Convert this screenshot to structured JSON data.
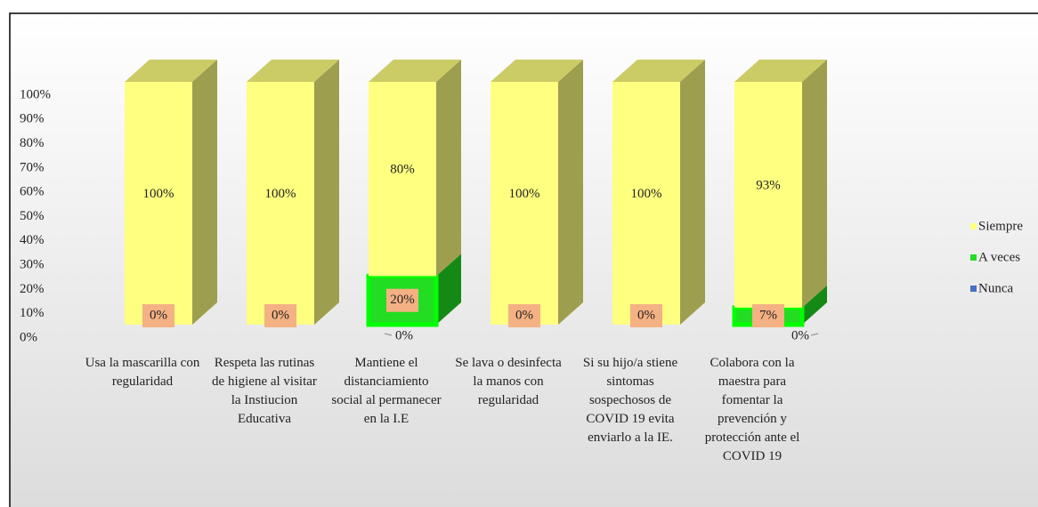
{
  "chart_data": {
    "type": "bar3d_stacked",
    "categories": [
      "Usa la mascarilla con regularidad",
      "Respeta las rutinas de higiene al visitar la Instiucion Educativa",
      "Mantiene el distanciamiento social al permanecer en la I.E",
      "Se lava o desinfecta la manos con regularidad",
      "Si su hijo/a stiene sintomas sospechosos de COVID 19 evita enviarlo a la IE.",
      "Colabora con la maestra para fomentar la prevención y protección ante el COVID 19"
    ],
    "series": [
      {
        "name": "Nunca",
        "color": "#4472c4",
        "values": [
          0,
          0,
          0,
          0,
          0,
          0
        ],
        "value_labels": [
          null,
          null,
          "0%",
          null,
          null,
          "0%"
        ]
      },
      {
        "name": "A veces",
        "color": "#22dd22",
        "values": [
          0,
          0,
          20,
          0,
          0,
          7
        ],
        "value_labels": [
          "0%",
          "0%",
          "20%",
          "0%",
          "0%",
          "7%"
        ]
      },
      {
        "name": "Siempre",
        "color": "#ffff80",
        "values": [
          100,
          100,
          80,
          100,
          100,
          93
        ],
        "value_labels": [
          "100%",
          "100%",
          "80%",
          "100%",
          "100%",
          "93%"
        ]
      }
    ],
    "ylim": [
      0,
      100
    ],
    "yticks": [
      {
        "value": 0,
        "label": "0%"
      },
      {
        "value": 10,
        "label": "10%"
      },
      {
        "value": 20,
        "label": "20%"
      },
      {
        "value": 30,
        "label": "30%"
      },
      {
        "value": 40,
        "label": "40%"
      },
      {
        "value": 50,
        "label": "50%"
      },
      {
        "value": 60,
        "label": "60%"
      },
      {
        "value": 70,
        "label": "70%"
      },
      {
        "value": 80,
        "label": "80%"
      },
      {
        "value": 90,
        "label": "90%"
      },
      {
        "value": 100,
        "label": "100%"
      }
    ],
    "legend": "right"
  }
}
